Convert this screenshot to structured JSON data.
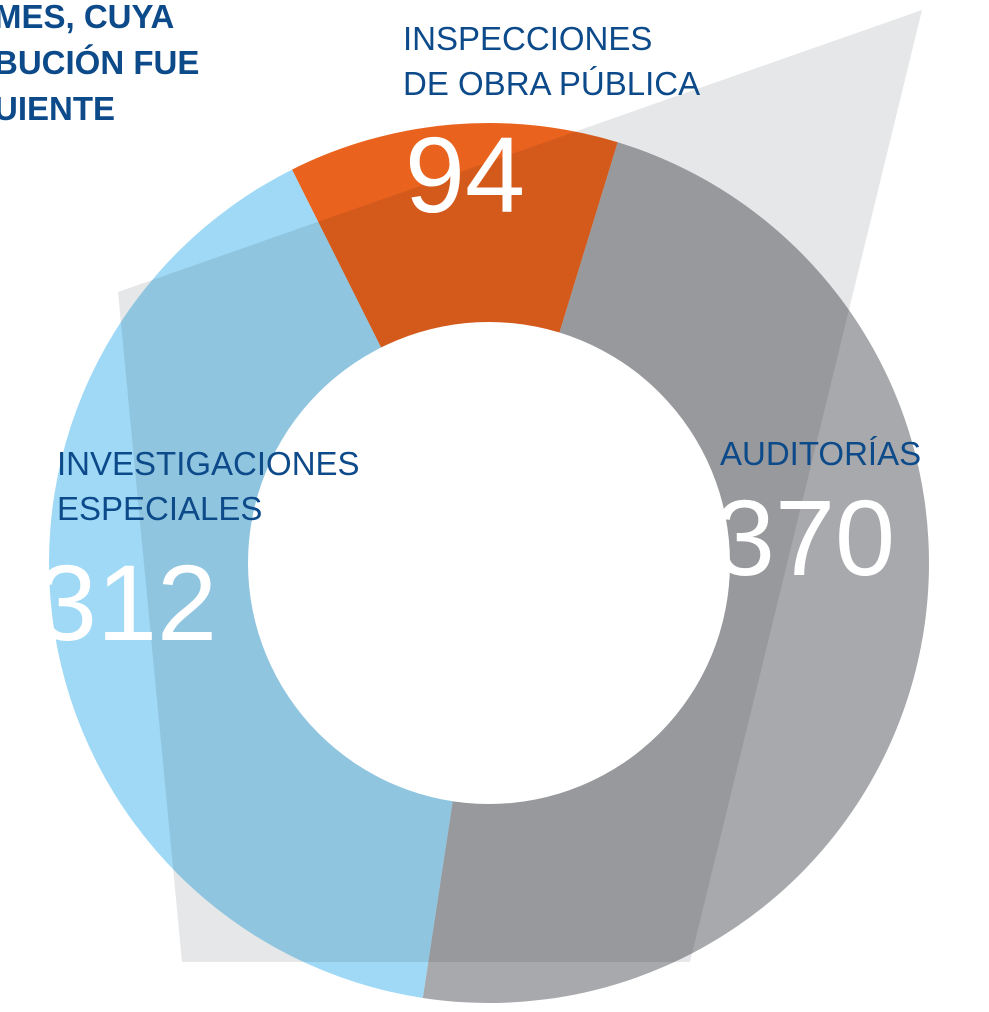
{
  "chart_data": {
    "type": "donut",
    "title_lines": [
      "MES, CUYA",
      "BUCIÓN FUE",
      "UIENTE"
    ],
    "categories": [
      [
        "INSPECCIONES",
        "DE OBRA PÚBLICA"
      ],
      [
        "AUDITORÍAS"
      ],
      [
        "INVESTIGACIONES",
        "ESPECIALES"
      ]
    ],
    "values": [
      94,
      370,
      312
    ],
    "colors": [
      "#e9631f",
      "#a7a9ac",
      "#9fd9f6"
    ]
  }
}
